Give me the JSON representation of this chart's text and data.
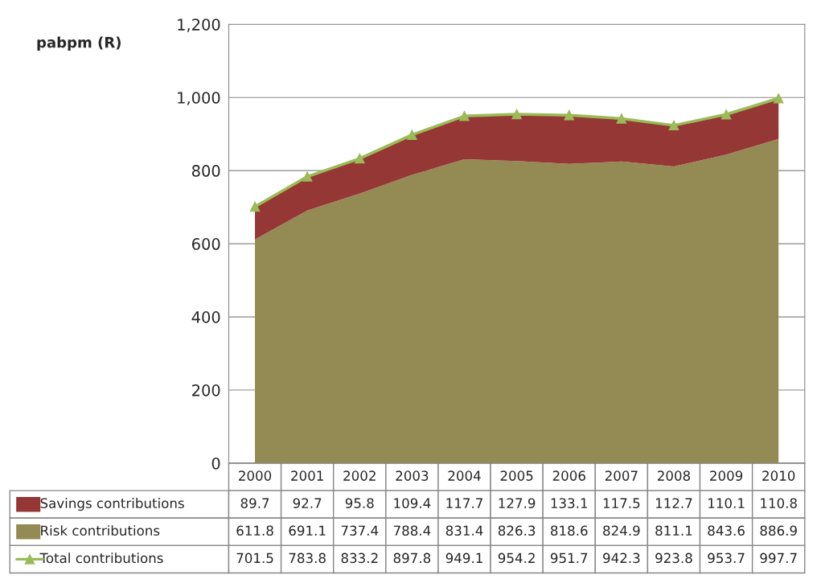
{
  "chart_data": {
    "type": "area",
    "ylabel": "pabpm (R)",
    "categories": [
      "2000",
      "2001",
      "2002",
      "2003",
      "2004",
      "2005",
      "2006",
      "2007",
      "2008",
      "2009",
      "2010"
    ],
    "stacked": true,
    "series": [
      {
        "name": "Risk contributions",
        "color": "#948a54",
        "values": [
          611.8,
          691.1,
          737.4,
          788.4,
          831.4,
          826.3,
          818.6,
          824.9,
          811.1,
          843.6,
          886.9
        ]
      },
      {
        "name": "Savings contributions",
        "color": "#953735",
        "values": [
          89.7,
          92.7,
          95.8,
          109.4,
          117.7,
          127.9,
          133.1,
          117.5,
          112.7,
          110.1,
          110.8
        ]
      },
      {
        "name": "Total contributions",
        "type": "line",
        "color": "#9bbb59",
        "marker": "triangle",
        "values": [
          701.5,
          783.8,
          833.2,
          897.8,
          949.1,
          954.2,
          951.7,
          942.3,
          923.8,
          953.7,
          997.7
        ]
      }
    ],
    "ylim": [
      0,
      1200
    ],
    "yticks": [
      0,
      200,
      400,
      600,
      800,
      {
        "value": 1000,
        "label": "1,000"
      },
      {
        "value": 1200,
        "label": "1,200"
      }
    ],
    "grid": "y",
    "legend": "bottom",
    "data_labels": true
  }
}
